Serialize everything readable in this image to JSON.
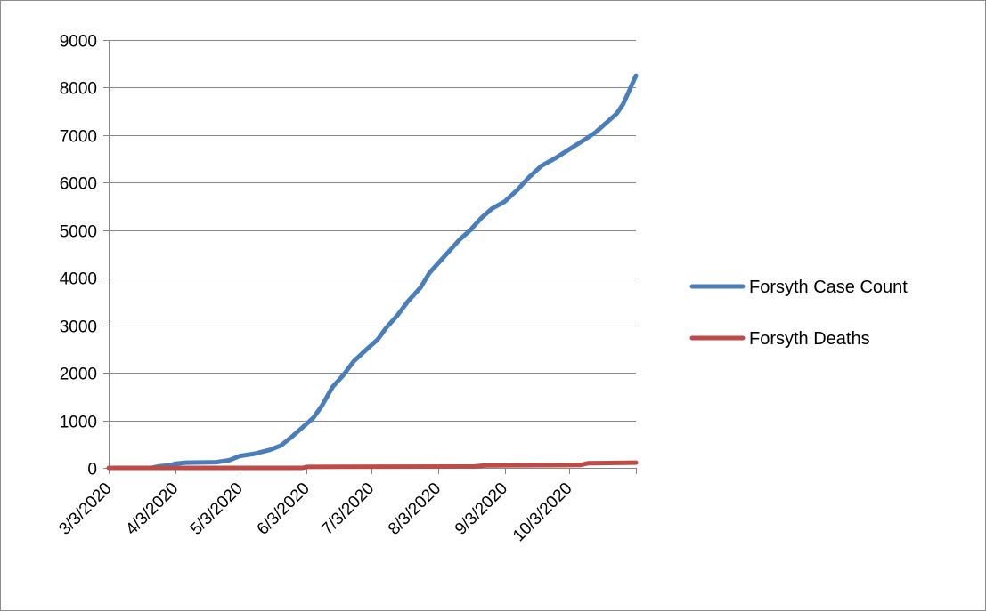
{
  "chart_data": {
    "type": "line",
    "title": "",
    "xlabel": "",
    "ylabel": "",
    "x_tick_labels": [
      "3/3/2020",
      "4/3/2020",
      "5/3/2020",
      "6/3/2020",
      "7/3/2020",
      "8/3/2020",
      "9/3/2020",
      "10/3/2020"
    ],
    "ylim": [
      0,
      9000
    ],
    "y_ticks": [
      0,
      1000,
      2000,
      3000,
      4000,
      5000,
      6000,
      7000,
      8000,
      9000
    ],
    "xlim": [
      "2020-03-03",
      "2020-11-03"
    ],
    "grid": true,
    "legend_position": "right",
    "series": [
      {
        "name": "Forsyth Case Count",
        "color": "#4a7ebb",
        "points": [
          [
            "2020-03-23",
            0
          ],
          [
            "2020-03-26",
            30
          ],
          [
            "2020-04-01",
            60
          ],
          [
            "2020-04-03",
            90
          ],
          [
            "2020-04-08",
            110
          ],
          [
            "2020-04-15",
            115
          ],
          [
            "2020-04-22",
            120
          ],
          [
            "2020-04-28",
            160
          ],
          [
            "2020-05-03",
            250
          ],
          [
            "2020-05-10",
            300
          ],
          [
            "2020-05-17",
            380
          ],
          [
            "2020-05-22",
            470
          ],
          [
            "2020-05-27",
            650
          ],
          [
            "2020-06-01",
            850
          ],
          [
            "2020-06-06",
            1050
          ],
          [
            "2020-06-10",
            1300
          ],
          [
            "2020-06-15",
            1700
          ],
          [
            "2020-06-20",
            1950
          ],
          [
            "2020-06-25",
            2250
          ],
          [
            "2020-07-01",
            2500
          ],
          [
            "2020-07-06",
            2700
          ],
          [
            "2020-07-10",
            2950
          ],
          [
            "2020-07-15",
            3200
          ],
          [
            "2020-07-20",
            3500
          ],
          [
            "2020-07-26",
            3800
          ],
          [
            "2020-07-30",
            4100
          ],
          [
            "2020-08-03",
            4300
          ],
          [
            "2020-08-08",
            4550
          ],
          [
            "2020-08-13",
            4800
          ],
          [
            "2020-08-18",
            5000
          ],
          [
            "2020-08-23",
            5250
          ],
          [
            "2020-08-28",
            5450
          ],
          [
            "2020-09-03",
            5600
          ],
          [
            "2020-09-09",
            5850
          ],
          [
            "2020-09-14",
            6100
          ],
          [
            "2020-09-20",
            6350
          ],
          [
            "2020-09-26",
            6500
          ],
          [
            "2020-10-03",
            6700
          ],
          [
            "2020-10-10",
            6900
          ],
          [
            "2020-10-15",
            7050
          ],
          [
            "2020-10-20",
            7250
          ],
          [
            "2020-10-25",
            7450
          ],
          [
            "2020-10-28",
            7650
          ],
          [
            "2020-10-31",
            7950
          ],
          [
            "2020-11-03",
            8250
          ]
        ]
      },
      {
        "name": "Forsyth Deaths",
        "color": "#be4b48",
        "points": [
          [
            "2020-03-03",
            0
          ],
          [
            "2020-06-01",
            0
          ],
          [
            "2020-06-03",
            20
          ],
          [
            "2020-08-20",
            30
          ],
          [
            "2020-08-25",
            50
          ],
          [
            "2020-10-08",
            60
          ],
          [
            "2020-10-12",
            100
          ],
          [
            "2020-11-03",
            110
          ]
        ]
      }
    ]
  }
}
